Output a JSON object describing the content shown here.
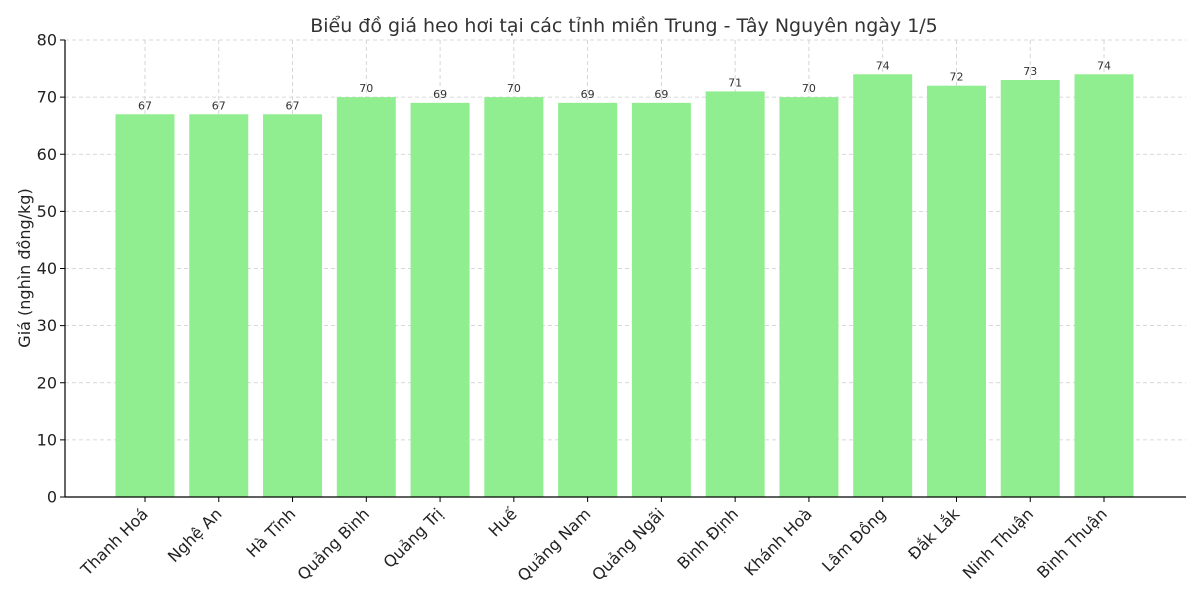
{
  "chart_data": {
    "type": "bar",
    "title": "Biểu đồ giá heo hơi tại các tỉnh miền Trung - Tây Nguyên ngày 1/5",
    "xlabel": "",
    "ylabel": "Giá (nghìn đồng/kg)",
    "ylim": [
      0,
      80
    ],
    "yticks": [
      "0",
      "10",
      "20",
      "30",
      "40",
      "50",
      "60",
      "70",
      "80"
    ],
    "grid": true,
    "bar_color": "#90ee90",
    "categories": [
      "Thanh Hoá",
      "Nghệ An",
      "Hà Tĩnh",
      "Quảng Bình",
      "Quảng Trị",
      "Huế",
      "Quảng Nam",
      "Quảng Ngãi",
      "Bình Định",
      "Khánh Hoà",
      "Lâm Đồng",
      "Đắk Lắk",
      "Ninh Thuận",
      "Bình Thuận"
    ],
    "values": [
      67,
      67,
      67,
      70,
      69,
      70,
      69,
      69,
      71,
      70,
      74,
      72,
      73,
      74
    ],
    "data_labels": [
      "67",
      "67",
      "67",
      "70",
      "69",
      "70",
      "69",
      "69",
      "71",
      "70",
      "74",
      "72",
      "73",
      "74"
    ]
  }
}
